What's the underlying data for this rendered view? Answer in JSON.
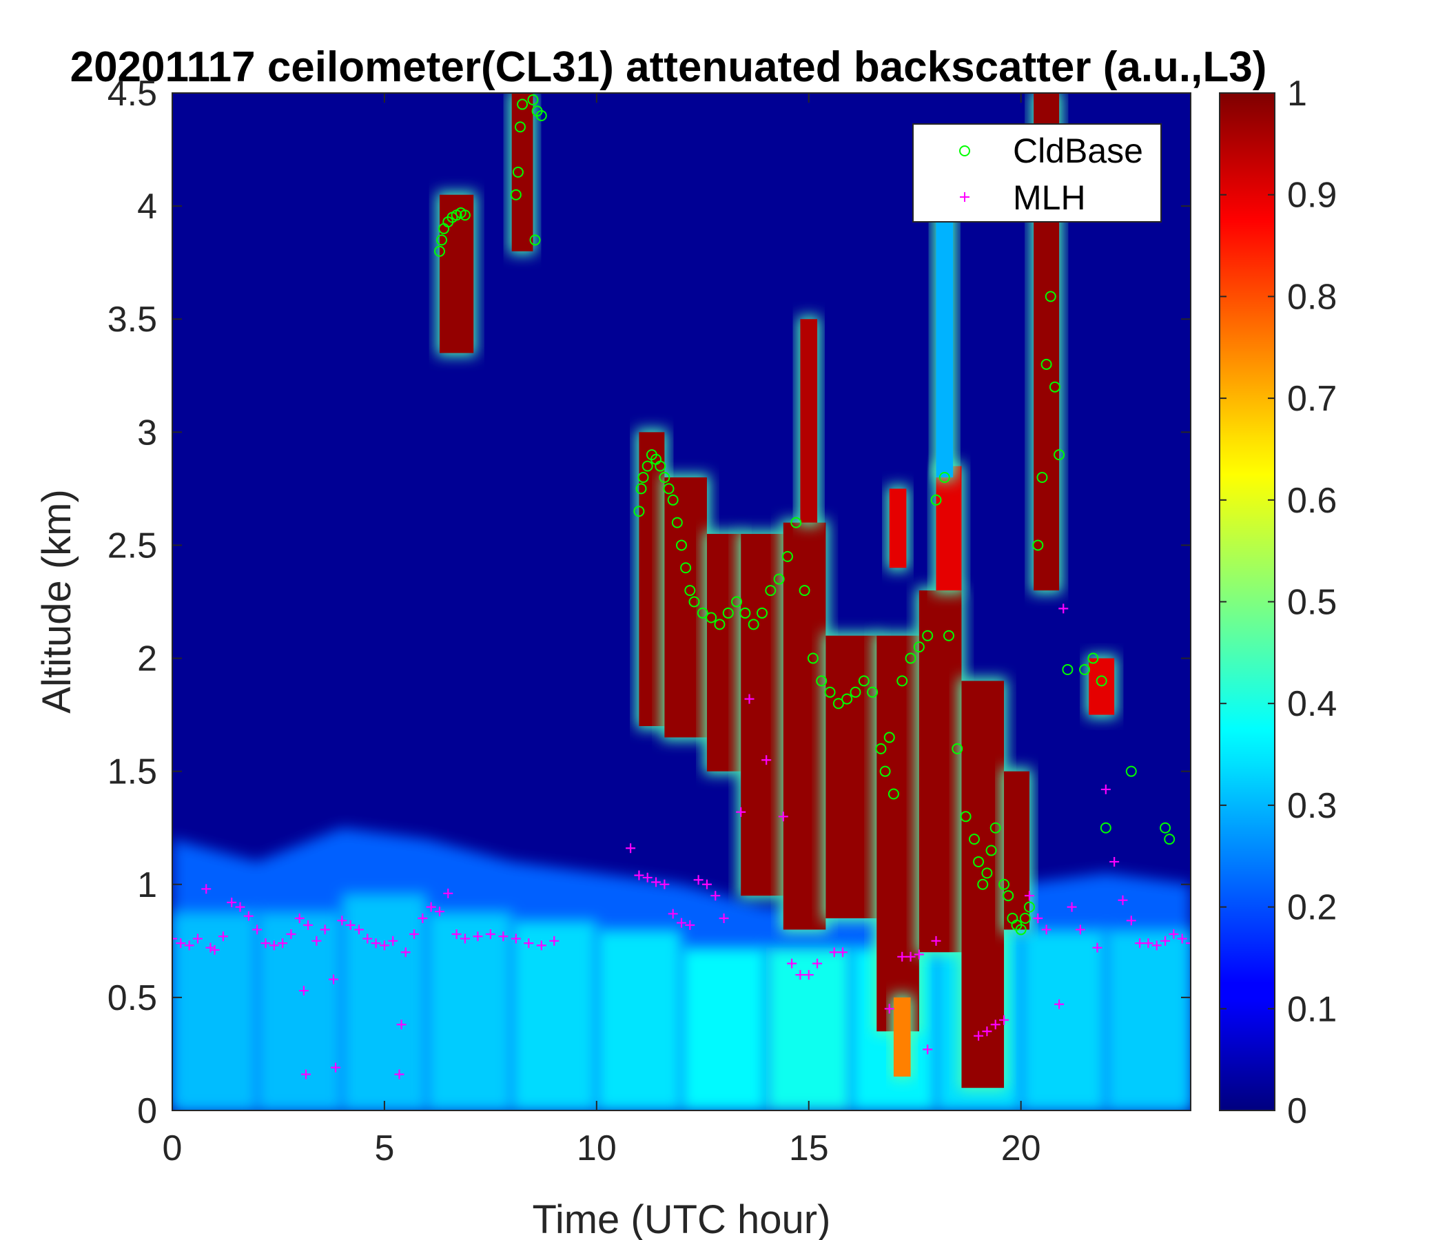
{
  "chart_data": {
    "type": "heatmap",
    "title": "20201117 ceilometer(CL31) attenuated backscatter (a.u.,L3)",
    "xlabel": "Time (UTC hour)",
    "ylabel": "Altitude (km)",
    "xlim": [
      0,
      24
    ],
    "ylim": [
      0,
      4.5
    ],
    "xticks": [
      0,
      5,
      10,
      15,
      20
    ],
    "xtick_labels": [
      "0",
      "5",
      "10",
      "15",
      "20"
    ],
    "yticks": [
      0,
      0.5,
      1,
      1.5,
      2,
      2.5,
      3,
      3.5,
      4,
      4.5
    ],
    "ytick_labels": [
      "0",
      "0.5",
      "1",
      "1.5",
      "2",
      "2.5",
      "3",
      "3.5",
      "4",
      "4.5"
    ],
    "colorbar": {
      "colormap": "jet",
      "range": [
        0,
        1
      ],
      "ticks": [
        0,
        0.1,
        0.2,
        0.3,
        0.4,
        0.5,
        0.6,
        0.7,
        0.8,
        0.9,
        1
      ],
      "tick_labels": [
        "0",
        "0.1",
        "0.2",
        "0.3",
        "0.4",
        "0.5",
        "0.6",
        "0.7",
        "0.8",
        "0.9",
        "1"
      ]
    },
    "legend": {
      "placement": "top-right",
      "entries": [
        {
          "name": "CldBase",
          "marker": "circle",
          "color": "#00ff00"
        },
        {
          "name": "MLH",
          "marker": "plus",
          "color": "#ff00ff"
        }
      ]
    },
    "background_value": 0.02,
    "boundary_layer": [
      {
        "x": 0,
        "top": 1.2,
        "value": 0.3
      },
      {
        "x": 2,
        "top": 1.1,
        "value": 0.32
      },
      {
        "x": 4,
        "top": 1.25,
        "value": 0.3
      },
      {
        "x": 6,
        "top": 1.2,
        "value": 0.33
      },
      {
        "x": 8,
        "top": 1.1,
        "value": 0.32
      },
      {
        "x": 10,
        "top": 1.05,
        "value": 0.36
      },
      {
        "x": 12,
        "top": 1.0,
        "value": 0.34
      },
      {
        "x": 14,
        "top": 0.9,
        "value": 0.4
      },
      {
        "x": 16,
        "top": 0.9,
        "value": 0.38
      },
      {
        "x": 18,
        "top": 1.0,
        "value": 0.35
      },
      {
        "x": 20,
        "top": 1.0,
        "value": 0.34
      },
      {
        "x": 22,
        "top": 1.05,
        "value": 0.33
      },
      {
        "x": 24,
        "top": 1.0,
        "value": 0.32
      }
    ],
    "cloud_regions": [
      {
        "x0": 6.3,
        "x1": 7.1,
        "y0": 3.35,
        "y1": 4.05,
        "value": 0.98
      },
      {
        "x0": 8.0,
        "x1": 8.5,
        "y0": 3.8,
        "y1": 4.5,
        "value": 0.98
      },
      {
        "x0": 11.0,
        "x1": 11.6,
        "y0": 1.7,
        "y1": 3.0,
        "value": 0.98
      },
      {
        "x0": 11.6,
        "x1": 12.6,
        "y0": 1.65,
        "y1": 2.8,
        "value": 0.98
      },
      {
        "x0": 12.6,
        "x1": 13.4,
        "y0": 1.5,
        "y1": 2.55,
        "value": 0.98
      },
      {
        "x0": 13.4,
        "x1": 14.4,
        "y0": 0.95,
        "y1": 2.55,
        "value": 0.98
      },
      {
        "x0": 14.4,
        "x1": 15.4,
        "y0": 0.8,
        "y1": 2.6,
        "value": 0.98
      },
      {
        "x0": 14.8,
        "x1": 15.2,
        "y0": 2.6,
        "y1": 3.5,
        "value": 0.95
      },
      {
        "x0": 15.4,
        "x1": 16.6,
        "y0": 0.85,
        "y1": 2.1,
        "value": 0.98
      },
      {
        "x0": 16.6,
        "x1": 17.6,
        "y0": 0.35,
        "y1": 2.1,
        "value": 0.98
      },
      {
        "x0": 16.9,
        "x1": 17.3,
        "y0": 2.4,
        "y1": 2.75,
        "value": 0.9
      },
      {
        "x0": 17.6,
        "x1": 18.6,
        "y0": 0.7,
        "y1": 2.3,
        "value": 0.98
      },
      {
        "x0": 18.0,
        "x1": 18.6,
        "y0": 2.3,
        "y1": 2.85,
        "value": 0.9
      },
      {
        "x0": 18.6,
        "x1": 19.6,
        "y0": 0.1,
        "y1": 1.9,
        "value": 0.98
      },
      {
        "x0": 19.6,
        "x1": 20.2,
        "y0": 0.8,
        "y1": 1.5,
        "value": 0.98
      },
      {
        "x0": 20.3,
        "x1": 20.9,
        "y0": 2.3,
        "y1": 4.5,
        "value": 0.98
      },
      {
        "x0": 21.6,
        "x1": 22.2,
        "y0": 1.75,
        "y1": 2.0,
        "value": 0.9
      },
      {
        "x0": 17.0,
        "x1": 17.4,
        "y0": 0.15,
        "y1": 0.5,
        "value": 0.75
      },
      {
        "x0": 18.0,
        "x1": 18.4,
        "y0": 2.8,
        "y1": 4.0,
        "value": 0.3
      }
    ],
    "series": [
      {
        "name": "CldBase",
        "marker": "circle",
        "color": "#00ff00",
        "points": [
          {
            "x": 6.3,
            "y": 3.8
          },
          {
            "x": 6.35,
            "y": 3.85
          },
          {
            "x": 6.4,
            "y": 3.9
          },
          {
            "x": 6.5,
            "y": 3.93
          },
          {
            "x": 6.6,
            "y": 3.95
          },
          {
            "x": 6.7,
            "y": 3.96
          },
          {
            "x": 6.8,
            "y": 3.97
          },
          {
            "x": 6.9,
            "y": 3.96
          },
          {
            "x": 8.1,
            "y": 4.05
          },
          {
            "x": 8.15,
            "y": 4.15
          },
          {
            "x": 8.2,
            "y": 4.35
          },
          {
            "x": 8.25,
            "y": 4.45
          },
          {
            "x": 8.5,
            "y": 4.47
          },
          {
            "x": 8.6,
            "y": 4.42
          },
          {
            "x": 8.7,
            "y": 4.4
          },
          {
            "x": 8.55,
            "y": 3.85
          },
          {
            "x": 11.0,
            "y": 2.65
          },
          {
            "x": 11.05,
            "y": 2.75
          },
          {
            "x": 11.1,
            "y": 2.8
          },
          {
            "x": 11.2,
            "y": 2.85
          },
          {
            "x": 11.3,
            "y": 2.9
          },
          {
            "x": 11.4,
            "y": 2.88
          },
          {
            "x": 11.5,
            "y": 2.85
          },
          {
            "x": 11.6,
            "y": 2.8
          },
          {
            "x": 11.7,
            "y": 2.75
          },
          {
            "x": 11.8,
            "y": 2.7
          },
          {
            "x": 11.9,
            "y": 2.6
          },
          {
            "x": 12.0,
            "y": 2.5
          },
          {
            "x": 12.1,
            "y": 2.4
          },
          {
            "x": 12.2,
            "y": 2.3
          },
          {
            "x": 12.3,
            "y": 2.25
          },
          {
            "x": 12.5,
            "y": 2.2
          },
          {
            "x": 12.7,
            "y": 2.18
          },
          {
            "x": 12.9,
            "y": 2.15
          },
          {
            "x": 13.1,
            "y": 2.2
          },
          {
            "x": 13.3,
            "y": 2.25
          },
          {
            "x": 13.5,
            "y": 2.2
          },
          {
            "x": 13.7,
            "y": 2.15
          },
          {
            "x": 13.9,
            "y": 2.2
          },
          {
            "x": 14.1,
            "y": 2.3
          },
          {
            "x": 14.3,
            "y": 2.35
          },
          {
            "x": 14.5,
            "y": 2.45
          },
          {
            "x": 14.7,
            "y": 2.6
          },
          {
            "x": 14.9,
            "y": 2.3
          },
          {
            "x": 15.1,
            "y": 2.0
          },
          {
            "x": 15.3,
            "y": 1.9
          },
          {
            "x": 15.5,
            "y": 1.85
          },
          {
            "x": 15.7,
            "y": 1.8
          },
          {
            "x": 15.9,
            "y": 1.82
          },
          {
            "x": 16.1,
            "y": 1.85
          },
          {
            "x": 16.3,
            "y": 1.9
          },
          {
            "x": 16.5,
            "y": 1.85
          },
          {
            "x": 16.7,
            "y": 1.6
          },
          {
            "x": 16.8,
            "y": 1.5
          },
          {
            "x": 16.9,
            "y": 1.65
          },
          {
            "x": 17.0,
            "y": 1.4
          },
          {
            "x": 17.2,
            "y": 1.9
          },
          {
            "x": 17.4,
            "y": 2.0
          },
          {
            "x": 17.6,
            "y": 2.05
          },
          {
            "x": 17.8,
            "y": 2.1
          },
          {
            "x": 18.0,
            "y": 2.7
          },
          {
            "x": 18.2,
            "y": 2.8
          },
          {
            "x": 18.3,
            "y": 2.1
          },
          {
            "x": 18.5,
            "y": 1.6
          },
          {
            "x": 18.7,
            "y": 1.3
          },
          {
            "x": 18.9,
            "y": 1.2
          },
          {
            "x": 19.0,
            "y": 1.1
          },
          {
            "x": 19.1,
            "y": 1.0
          },
          {
            "x": 19.2,
            "y": 1.05
          },
          {
            "x": 19.3,
            "y": 1.15
          },
          {
            "x": 19.4,
            "y": 1.25
          },
          {
            "x": 19.6,
            "y": 1.0
          },
          {
            "x": 19.7,
            "y": 0.95
          },
          {
            "x": 19.8,
            "y": 0.85
          },
          {
            "x": 19.9,
            "y": 0.82
          },
          {
            "x": 20.0,
            "y": 0.8
          },
          {
            "x": 20.1,
            "y": 0.85
          },
          {
            "x": 20.2,
            "y": 0.9
          },
          {
            "x": 20.4,
            "y": 2.5
          },
          {
            "x": 20.5,
            "y": 2.8
          },
          {
            "x": 20.6,
            "y": 3.3
          },
          {
            "x": 20.7,
            "y": 3.6
          },
          {
            "x": 20.8,
            "y": 3.2
          },
          {
            "x": 20.9,
            "y": 2.9
          },
          {
            "x": 21.1,
            "y": 1.95
          },
          {
            "x": 21.5,
            "y": 1.95
          },
          {
            "x": 21.7,
            "y": 2.0
          },
          {
            "x": 21.9,
            "y": 1.9
          },
          {
            "x": 22.0,
            "y": 1.25
          },
          {
            "x": 22.6,
            "y": 1.5
          },
          {
            "x": 23.4,
            "y": 1.25
          },
          {
            "x": 23.5,
            "y": 1.2
          }
        ]
      },
      {
        "name": "MLH",
        "marker": "plus",
        "color": "#ff00ff",
        "points": [
          {
            "x": 0.0,
            "y": 0.76
          },
          {
            "x": 0.2,
            "y": 0.74
          },
          {
            "x": 0.4,
            "y": 0.73
          },
          {
            "x": 0.6,
            "y": 0.76
          },
          {
            "x": 0.8,
            "y": 0.98
          },
          {
            "x": 0.9,
            "y": 0.72
          },
          {
            "x": 1.0,
            "y": 0.71
          },
          {
            "x": 1.2,
            "y": 0.77
          },
          {
            "x": 1.4,
            "y": 0.92
          },
          {
            "x": 1.6,
            "y": 0.9
          },
          {
            "x": 1.8,
            "y": 0.86
          },
          {
            "x": 2.0,
            "y": 0.8
          },
          {
            "x": 2.2,
            "y": 0.74
          },
          {
            "x": 2.4,
            "y": 0.73
          },
          {
            "x": 2.6,
            "y": 0.74
          },
          {
            "x": 2.8,
            "y": 0.78
          },
          {
            "x": 3.0,
            "y": 0.85
          },
          {
            "x": 3.1,
            "y": 0.53
          },
          {
            "x": 3.15,
            "y": 0.16
          },
          {
            "x": 3.2,
            "y": 0.82
          },
          {
            "x": 3.4,
            "y": 0.75
          },
          {
            "x": 3.6,
            "y": 0.8
          },
          {
            "x": 3.8,
            "y": 0.58
          },
          {
            "x": 3.85,
            "y": 0.19
          },
          {
            "x": 4.0,
            "y": 0.84
          },
          {
            "x": 4.2,
            "y": 0.82
          },
          {
            "x": 4.4,
            "y": 0.8
          },
          {
            "x": 4.6,
            "y": 0.76
          },
          {
            "x": 4.8,
            "y": 0.74
          },
          {
            "x": 5.0,
            "y": 0.73
          },
          {
            "x": 5.2,
            "y": 0.75
          },
          {
            "x": 5.4,
            "y": 0.38
          },
          {
            "x": 5.35,
            "y": 0.16
          },
          {
            "x": 5.5,
            "y": 0.7
          },
          {
            "x": 5.7,
            "y": 0.78
          },
          {
            "x": 5.9,
            "y": 0.85
          },
          {
            "x": 6.1,
            "y": 0.9
          },
          {
            "x": 6.3,
            "y": 0.88
          },
          {
            "x": 6.5,
            "y": 0.96
          },
          {
            "x": 6.7,
            "y": 0.78
          },
          {
            "x": 6.9,
            "y": 0.76
          },
          {
            "x": 7.2,
            "y": 0.77
          },
          {
            "x": 7.5,
            "y": 0.78
          },
          {
            "x": 7.8,
            "y": 0.77
          },
          {
            "x": 8.1,
            "y": 0.76
          },
          {
            "x": 8.4,
            "y": 0.74
          },
          {
            "x": 8.7,
            "y": 0.73
          },
          {
            "x": 9.0,
            "y": 0.75
          },
          {
            "x": 10.8,
            "y": 1.16
          },
          {
            "x": 11.0,
            "y": 1.04
          },
          {
            "x": 11.2,
            "y": 1.03
          },
          {
            "x": 11.4,
            "y": 1.01
          },
          {
            "x": 11.6,
            "y": 1.0
          },
          {
            "x": 11.8,
            "y": 0.87
          },
          {
            "x": 12.0,
            "y": 0.83
          },
          {
            "x": 12.2,
            "y": 0.82
          },
          {
            "x": 12.4,
            "y": 1.02
          },
          {
            "x": 12.6,
            "y": 1.0
          },
          {
            "x": 12.8,
            "y": 0.95
          },
          {
            "x": 13.0,
            "y": 0.85
          },
          {
            "x": 13.4,
            "y": 1.32
          },
          {
            "x": 13.6,
            "y": 1.82
          },
          {
            "x": 14.0,
            "y": 1.55
          },
          {
            "x": 14.4,
            "y": 1.3
          },
          {
            "x": 14.6,
            "y": 0.65
          },
          {
            "x": 14.8,
            "y": 0.6
          },
          {
            "x": 15.0,
            "y": 0.6
          },
          {
            "x": 15.2,
            "y": 0.65
          },
          {
            "x": 15.6,
            "y": 0.7
          },
          {
            "x": 15.8,
            "y": 0.7
          },
          {
            "x": 16.9,
            "y": 0.45
          },
          {
            "x": 17.2,
            "y": 0.68
          },
          {
            "x": 17.4,
            "y": 0.68
          },
          {
            "x": 17.6,
            "y": 0.69
          },
          {
            "x": 17.8,
            "y": 0.27
          },
          {
            "x": 18.0,
            "y": 0.75
          },
          {
            "x": 19.0,
            "y": 0.33
          },
          {
            "x": 19.2,
            "y": 0.35
          },
          {
            "x": 19.4,
            "y": 0.38
          },
          {
            "x": 19.6,
            "y": 0.4
          },
          {
            "x": 20.2,
            "y": 0.95
          },
          {
            "x": 20.4,
            "y": 0.85
          },
          {
            "x": 20.6,
            "y": 0.8
          },
          {
            "x": 20.9,
            "y": 0.47
          },
          {
            "x": 21.0,
            "y": 2.22
          },
          {
            "x": 21.2,
            "y": 0.9
          },
          {
            "x": 21.4,
            "y": 0.8
          },
          {
            "x": 21.8,
            "y": 0.72
          },
          {
            "x": 22.0,
            "y": 1.42
          },
          {
            "x": 22.2,
            "y": 1.1
          },
          {
            "x": 22.4,
            "y": 0.93
          },
          {
            "x": 22.6,
            "y": 0.84
          },
          {
            "x": 22.8,
            "y": 0.74
          },
          {
            "x": 23.0,
            "y": 0.74
          },
          {
            "x": 23.2,
            "y": 0.73
          },
          {
            "x": 23.4,
            "y": 0.75
          },
          {
            "x": 23.6,
            "y": 0.78
          },
          {
            "x": 23.8,
            "y": 0.76
          },
          {
            "x": 24.0,
            "y": 0.74
          }
        ]
      }
    ]
  }
}
